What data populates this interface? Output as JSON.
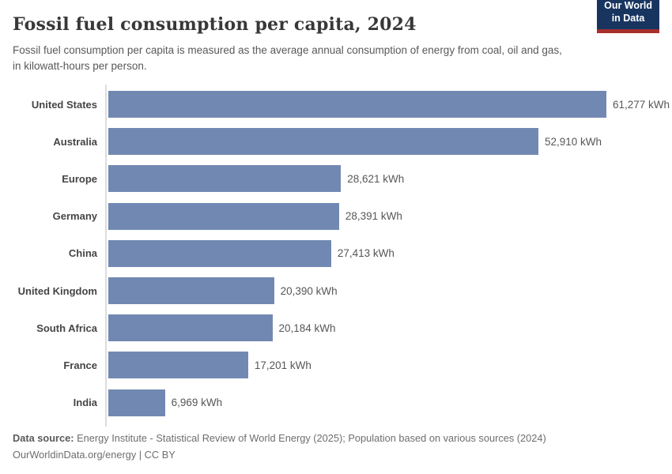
{
  "header": {
    "title": "Fossil fuel consumption per capita, 2024",
    "subtitle": "Fossil fuel consumption per capita is measured as the average annual consumption of energy from coal, oil and gas, in kilowatt-hours per person.",
    "logo": {
      "line1": "Our World",
      "line2": "in Data",
      "bg_color": "#183560",
      "accent_color": "#a8302c"
    }
  },
  "chart_data": {
    "type": "bar",
    "orientation": "horizontal",
    "title": "Fossil fuel consumption per capita, 2024",
    "unit": "kWh",
    "categories": [
      "United States",
      "Australia",
      "Europe",
      "Germany",
      "China",
      "United Kingdom",
      "South Africa",
      "France",
      "India"
    ],
    "values": [
      61277,
      52910,
      28621,
      28391,
      27413,
      20390,
      20184,
      17201,
      6969
    ],
    "value_labels": [
      "61,277 kWh",
      "52,910 kWh",
      "28,621 kWh",
      "28,391 kWh",
      "27,413 kWh",
      "20,390 kWh",
      "20,184 kWh",
      "17,201 kWh",
      "6,969 kWh"
    ],
    "xlim": [
      0,
      61277
    ],
    "bar_color": "#7189b2",
    "grid": false,
    "legend": null
  },
  "footer": {
    "datasource_label": "Data source:",
    "datasource_text": " Energy Institute - Statistical Review of World Energy (2025); Population based on various sources (2024)",
    "attribution": "OurWorldinData.org/energy | CC BY"
  }
}
